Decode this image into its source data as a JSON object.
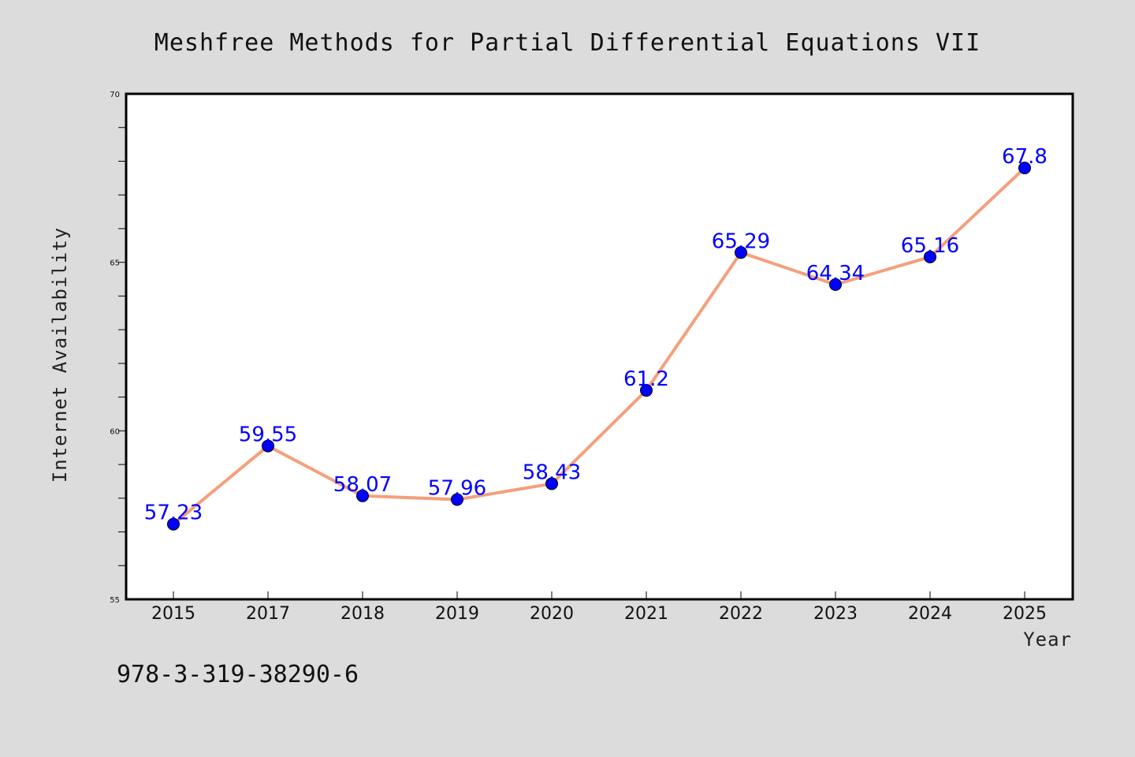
{
  "chart_data": {
    "type": "line",
    "title": "Meshfree Methods for Partial Differential Equations VII",
    "xlabel": "Year",
    "ylabel": "Internet Availability",
    "ylim": [
      55,
      70
    ],
    "yticks": [
      55,
      60,
      65,
      70
    ],
    "grid": false,
    "categories": [
      "2015",
      "2017",
      "2018",
      "2019",
      "2020",
      "2021",
      "2022",
      "2023",
      "2024",
      "2025"
    ],
    "series": [
      {
        "values": [
          57.23,
          59.55,
          58.07,
          57.96,
          58.43,
          61.2,
          65.29,
          64.34,
          65.16,
          67.8
        ],
        "labels": [
          "57.23",
          "59.55",
          "58.07",
          "57.96",
          "58.43",
          "61.2",
          "65.29",
          "64.34",
          "65.16",
          "67.8"
        ]
      }
    ],
    "line_color": "#f4a07c",
    "marker_color": "#0000ff",
    "label_color": "#0000ff"
  },
  "footer": {
    "isbn": "978-3-319-38290-6"
  }
}
